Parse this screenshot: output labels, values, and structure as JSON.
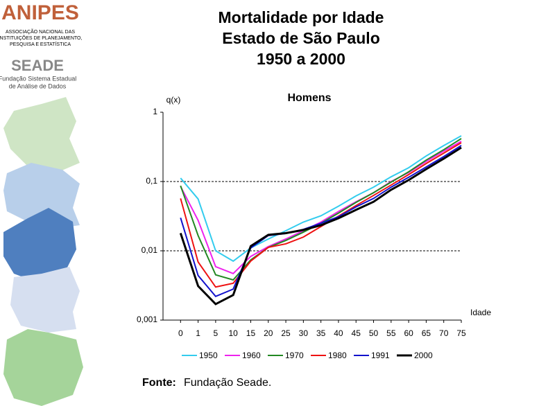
{
  "logos": {
    "anipes": "ANIPES",
    "anipes_lines": [
      "ASSOCIAÇÃO NACIONAL DAS",
      "INSTITUIÇÕES DE PLANEJAMENTO,",
      "PESQUISA E ESTATÍSTICA"
    ],
    "seade": "SEADE",
    "seade_lines": [
      "Fundação Sistema Estadual",
      "de Análise de Dados"
    ]
  },
  "header": {
    "title_lines": [
      "Mortalidade por Idade",
      "Estado de São Paulo",
      "1950 a 2000"
    ]
  },
  "source": {
    "label": "Fonte:",
    "text": "Fundação Seade."
  },
  "chart_data": {
    "type": "line",
    "title": "Homens",
    "y_label": "q(x)",
    "x_label": "Idade",
    "categories": [
      "0",
      "1",
      "5",
      "10",
      "15",
      "20",
      "25",
      "30",
      "35",
      "40",
      "45",
      "50",
      "55",
      "60",
      "65",
      "70",
      "75"
    ],
    "ylim": [
      0.001,
      1
    ],
    "log_scale": true,
    "grid": true,
    "yticks": [
      {
        "value": 0.001,
        "label": "0,001"
      },
      {
        "value": 0.01,
        "label": "0,01"
      },
      {
        "value": 0.1,
        "label": "0,1"
      },
      1
    ],
    "series": [
      {
        "name": "1950",
        "color": "#33ccee",
        "width": 2,
        "values": [
          0.112,
          0.056,
          0.01,
          0.0071,
          0.011,
          0.0148,
          0.0195,
          0.026,
          0.032,
          0.044,
          0.062,
          0.083,
          0.117,
          0.158,
          0.234,
          0.33,
          0.457
        ]
      },
      {
        "name": "1960",
        "color": "#ee22ee",
        "width": 2,
        "values": [
          0.085,
          0.0275,
          0.0059,
          0.0047,
          0.0083,
          0.0115,
          0.0148,
          0.0195,
          0.026,
          0.037,
          0.051,
          0.069,
          0.1,
          0.135,
          0.195,
          0.275,
          0.38
        ]
      },
      {
        "name": "1970",
        "color": "#228822",
        "width": 2,
        "values": [
          0.087,
          0.0166,
          0.0045,
          0.0038,
          0.0074,
          0.0112,
          0.0141,
          0.0186,
          0.025,
          0.035,
          0.05,
          0.069,
          0.098,
          0.138,
          0.204,
          0.288,
          0.417
        ]
      },
      {
        "name": "1980",
        "color": "#ee1111",
        "width": 2,
        "values": [
          0.057,
          0.0069,
          0.003,
          0.0034,
          0.0071,
          0.0112,
          0.0126,
          0.0158,
          0.0224,
          0.0316,
          0.045,
          0.063,
          0.089,
          0.126,
          0.182,
          0.257,
          0.363
        ]
      },
      {
        "name": "1991",
        "color": "#1111cc",
        "width": 2,
        "values": [
          0.03,
          0.0044,
          0.0022,
          0.0028,
          0.011,
          0.0166,
          0.0178,
          0.0204,
          0.025,
          0.031,
          0.043,
          0.057,
          0.083,
          0.115,
          0.162,
          0.229,
          0.331
        ]
      },
      {
        "name": "2000",
        "color": "#000000",
        "width": 3,
        "values": [
          0.018,
          0.0031,
          0.0017,
          0.0023,
          0.0117,
          0.017,
          0.018,
          0.02,
          0.0234,
          0.0295,
          0.039,
          0.051,
          0.076,
          0.105,
          0.151,
          0.214,
          0.309
        ]
      }
    ]
  }
}
